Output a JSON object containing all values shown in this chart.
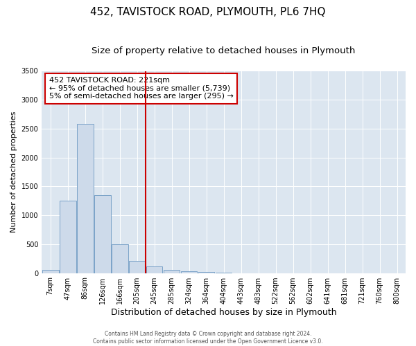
{
  "title": "452, TAVISTOCK ROAD, PLYMOUTH, PL6 7HQ",
  "subtitle": "Size of property relative to detached houses in Plymouth",
  "xlabel": "Distribution of detached houses by size in Plymouth",
  "ylabel": "Number of detached properties",
  "bar_color": "#cddaea",
  "bar_edge_color": "#7ba3c8",
  "background_color": "#dce6f0",
  "tick_labels": [
    "7sqm",
    "47sqm",
    "86sqm",
    "126sqm",
    "166sqm",
    "205sqm",
    "245sqm",
    "285sqm",
    "324sqm",
    "364sqm",
    "404sqm",
    "443sqm",
    "483sqm",
    "522sqm",
    "562sqm",
    "602sqm",
    "641sqm",
    "681sqm",
    "721sqm",
    "760sqm",
    "800sqm"
  ],
  "bar_heights": [
    50,
    1250,
    2580,
    1350,
    500,
    205,
    110,
    55,
    30,
    15,
    5,
    0,
    0,
    0,
    0,
    0,
    0,
    0,
    0,
    0,
    0
  ],
  "ylim": [
    0,
    3500
  ],
  "yticks": [
    0,
    500,
    1000,
    1500,
    2000,
    2500,
    3000,
    3500
  ],
  "vline_index": 6,
  "vline_color": "#cc0000",
  "annotation_title": "452 TAVISTOCK ROAD: 221sqm",
  "annotation_line1": "← 95% of detached houses are smaller (5,739)",
  "annotation_line2": "5% of semi-detached houses are larger (295) →",
  "annotation_box_color": "#cc0000",
  "footer_line1": "Contains HM Land Registry data © Crown copyright and database right 2024.",
  "footer_line2": "Contains public sector information licensed under the Open Government Licence v3.0.",
  "title_fontsize": 11,
  "subtitle_fontsize": 9.5,
  "ylabel_fontsize": 8,
  "xlabel_fontsize": 9,
  "annotation_fontsize": 8,
  "footer_fontsize": 5.5,
  "tick_fontsize": 7
}
